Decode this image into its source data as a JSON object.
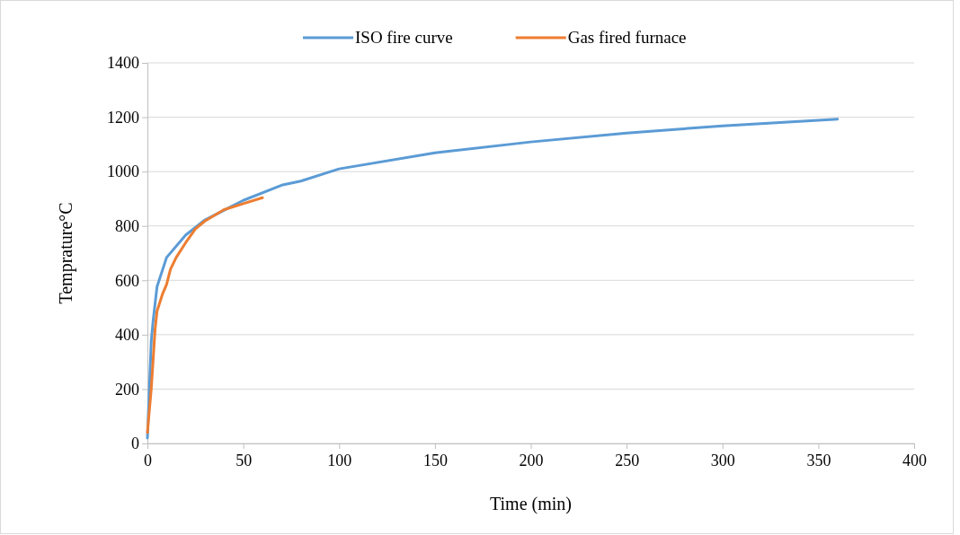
{
  "chart_data": {
    "type": "line",
    "xlabel": "Time (min)",
    "ylabel": "Temprature°C",
    "xlim": [
      0,
      400
    ],
    "ylim": [
      0,
      1400
    ],
    "xticks": [
      0,
      50,
      100,
      150,
      200,
      250,
      300,
      350,
      400
    ],
    "yticks": [
      0,
      200,
      400,
      600,
      800,
      1000,
      1200,
      1400
    ],
    "grid": "y",
    "legend": "top",
    "line_style": "solid",
    "marker": "none",
    "series": [
      {
        "name": "ISO fire curve",
        "color": "#5b9bd5",
        "x": [
          0,
          2,
          3,
          5,
          10,
          20,
          30,
          50,
          70,
          80,
          100,
          150,
          200,
          250,
          300,
          360
        ],
        "values": [
          20,
          376,
          453,
          576,
          684,
          767,
          822,
          894,
          950,
          965,
          1010,
          1069,
          1109,
          1142,
          1168,
          1193
        ]
      },
      {
        "name": "Gas fired furnace",
        "color": "#ed7d31",
        "x": [
          0,
          2,
          4,
          5,
          8,
          10,
          12,
          15,
          20,
          25,
          30,
          40,
          50,
          60
        ],
        "values": [
          40,
          200,
          420,
          486,
          552,
          585,
          640,
          684,
          739,
          789,
          818,
          860,
          882,
          904
        ]
      }
    ]
  }
}
